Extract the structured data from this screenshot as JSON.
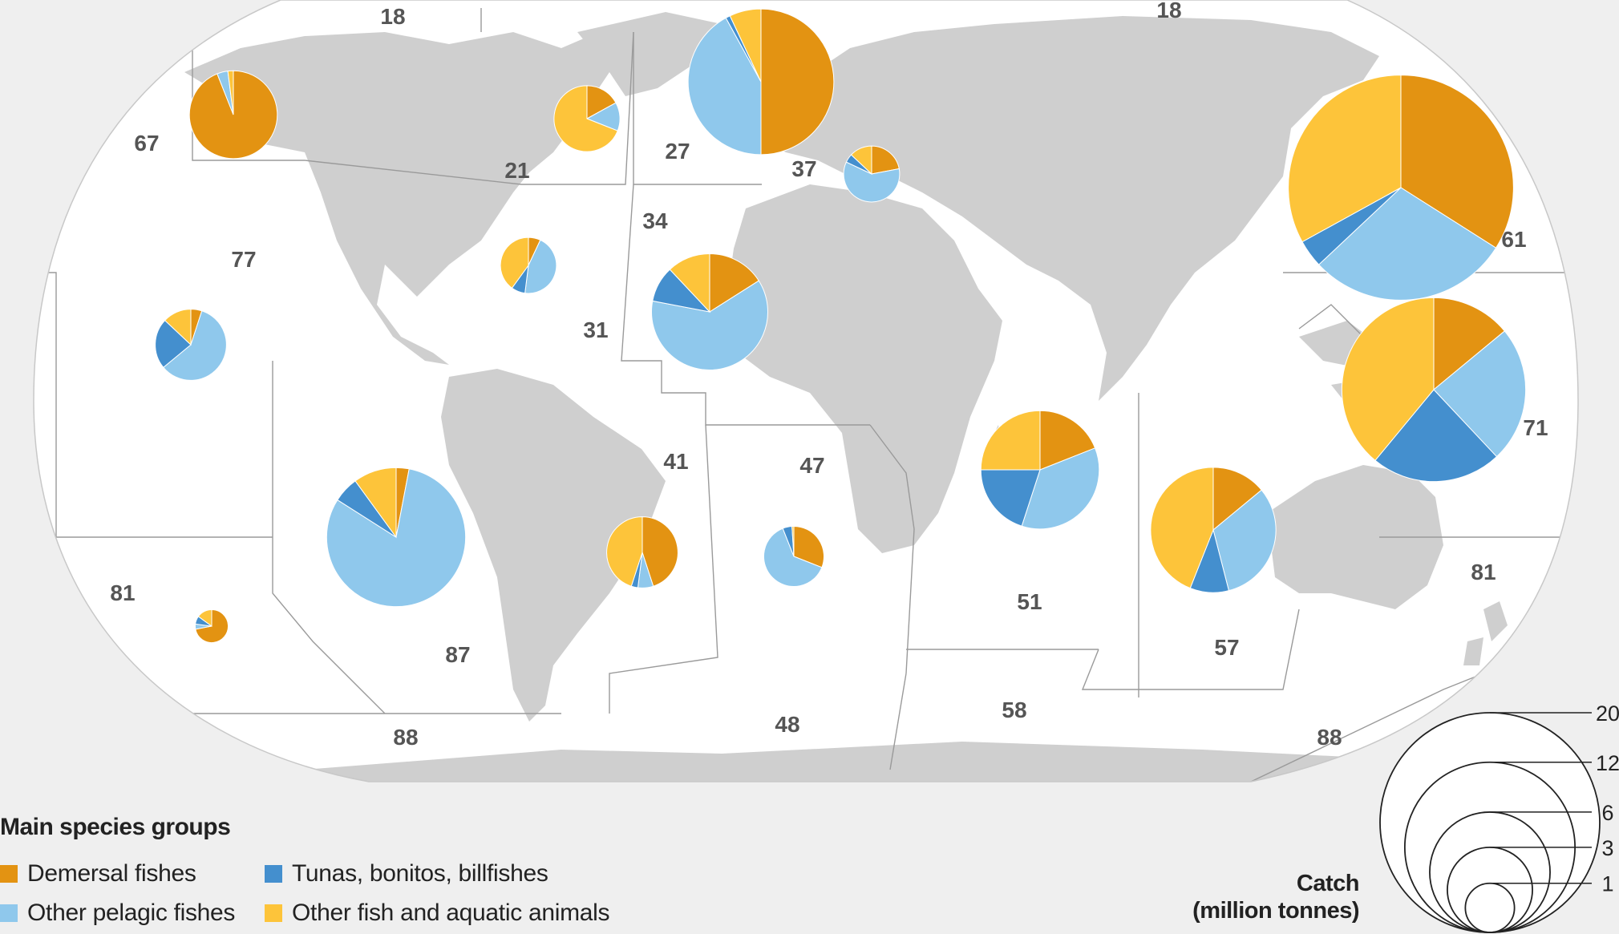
{
  "colors": {
    "background": "#efefef",
    "ocean": "#ffffff",
    "land": "#cfcfcf",
    "boundary": "#9a9a9a",
    "demersal": "#e39312",
    "other_pelagic": "#8fc8ec",
    "tunas": "#448fce",
    "other_fish": "#fdc43a",
    "area_label": "#555555"
  },
  "fishing_areas": [
    {
      "code": "18",
      "label": "18"
    },
    {
      "code": "18",
      "label": "18"
    },
    {
      "code": "67",
      "label": "67"
    },
    {
      "code": "21",
      "label": "21"
    },
    {
      "code": "27",
      "label": "27"
    },
    {
      "code": "37",
      "label": "37"
    },
    {
      "code": "34",
      "label": "34"
    },
    {
      "code": "61",
      "label": "61"
    },
    {
      "code": "77",
      "label": "77"
    },
    {
      "code": "31",
      "label": "31"
    },
    {
      "code": "41",
      "label": "41"
    },
    {
      "code": "47",
      "label": "47"
    },
    {
      "code": "71",
      "label": "71"
    },
    {
      "code": "51",
      "label": "51"
    },
    {
      "code": "81",
      "label": "81"
    },
    {
      "code": "81",
      "label": "81"
    },
    {
      "code": "87",
      "label": "87"
    },
    {
      "code": "57",
      "label": "57"
    },
    {
      "code": "88",
      "label": "88"
    },
    {
      "code": "48",
      "label": "48"
    },
    {
      "code": "58",
      "label": "58"
    },
    {
      "code": "88",
      "label": "88"
    }
  ],
  "catch_pies": [
    {
      "area": "67",
      "catch": 3.2,
      "shares": [
        0.94,
        0.04,
        0.0,
        0.02
      ]
    },
    {
      "area": "21",
      "catch": 1.8,
      "shares": [
        0.17,
        0.14,
        0.0,
        0.69
      ]
    },
    {
      "area": "27",
      "catch": 8.8,
      "shares": [
        0.5,
        0.42,
        0.01,
        0.07
      ]
    },
    {
      "area": "37",
      "catch": 1.3,
      "shares": [
        0.22,
        0.6,
        0.05,
        0.13
      ]
    },
    {
      "area": "61",
      "catch": 21.0,
      "shares": [
        0.34,
        0.29,
        0.04,
        0.33
      ]
    },
    {
      "area": "31",
      "catch": 1.3,
      "shares": [
        0.07,
        0.45,
        0.08,
        0.4
      ]
    },
    {
      "area": "34",
      "catch": 5.6,
      "shares": [
        0.16,
        0.62,
        0.1,
        0.12
      ]
    },
    {
      "area": "77",
      "catch": 2.1,
      "shares": [
        0.05,
        0.59,
        0.23,
        0.13
      ]
    },
    {
      "area": "71",
      "catch": 14.0,
      "shares": [
        0.14,
        0.24,
        0.23,
        0.39
      ]
    },
    {
      "area": "51",
      "catch": 5.8,
      "shares": [
        0.19,
        0.36,
        0.2,
        0.25
      ]
    },
    {
      "area": "41",
      "catch": 2.1,
      "shares": [
        0.45,
        0.07,
        0.03,
        0.45
      ]
    },
    {
      "area": "47",
      "catch": 1.5,
      "shares": [
        0.31,
        0.63,
        0.05,
        0.01
      ]
    },
    {
      "area": "57",
      "catch": 6.5,
      "shares": [
        0.14,
        0.32,
        0.1,
        0.44
      ]
    },
    {
      "area": "87",
      "catch": 8.0,
      "shares": [
        0.03,
        0.81,
        0.06,
        0.1
      ]
    },
    {
      "area": "81",
      "catch": 0.45,
      "shares": [
        0.72,
        0.05,
        0.08,
        0.15
      ]
    }
  ],
  "legend": {
    "title": "Main species groups",
    "items": [
      {
        "key": "demersal",
        "label": "Demersal fishes"
      },
      {
        "key": "tunas",
        "label": "Tunas, bonitos, billfishes"
      },
      {
        "key": "other_pelagic",
        "label": "Other pelagic fishes"
      },
      {
        "key": "other_fish",
        "label": "Other fish and aquatic animals"
      }
    ]
  },
  "size_legend": {
    "title_line1": "Catch",
    "title_line2": "(million tonnes)",
    "values": [
      20,
      12,
      6,
      3,
      1
    ],
    "labels": [
      "20",
      "12",
      "6",
      "3",
      "1"
    ]
  }
}
